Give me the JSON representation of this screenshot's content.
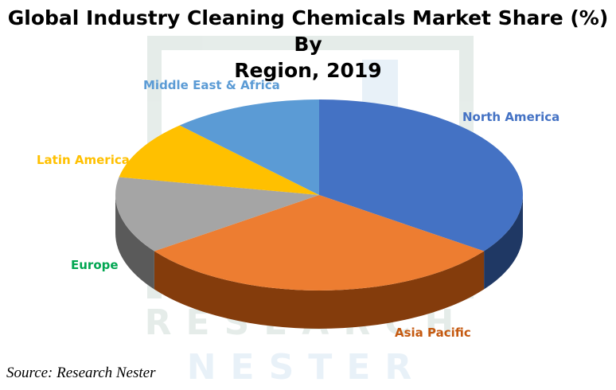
{
  "title_line1": "Global Industry Cleaning Chemicals Market Share (%) By",
  "title_line2": "Region, 2019",
  "source": "Source: Research Nester",
  "chart_data": {
    "type": "pie",
    "title": "Global Industry Cleaning Chemicals Market Share (%) By Region, 2019",
    "three_d": true,
    "data_labels": "category names only",
    "slices": [
      {
        "label": "North America",
        "value": 35,
        "color": "#4472c4",
        "side_color": "#1f3864"
      },
      {
        "label": "Asia Pacific",
        "value": 30,
        "color": "#ed7d31",
        "side_color": "#843c0c"
      },
      {
        "label": "Europe",
        "value": 13,
        "color": "#a5a5a5",
        "side_color": "#5a5a5a"
      },
      {
        "label": "Latin America",
        "value": 10,
        "color": "#ffc000",
        "side_color": "#8a6d00"
      },
      {
        "label": "Middle East & Africa",
        "value": 12,
        "color": "#5b9bd5",
        "side_color": "#2e5b86"
      }
    ]
  }
}
